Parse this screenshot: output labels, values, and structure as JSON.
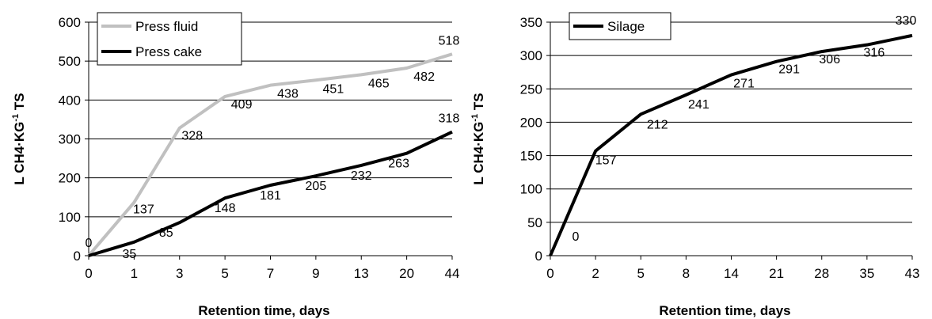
{
  "chart_data": [
    {
      "type": "line",
      "xlabel": "Retention time, days",
      "ylabel": "L CH4·KG⁻¹ TS",
      "ylabel_main": "L CH4·KG",
      "ylabel_sup": "-1",
      "ylabel_end": " TS",
      "categories": [
        "0",
        "1",
        "3",
        "5",
        "7",
        "9",
        "13",
        "20",
        "44"
      ],
      "ylim": [
        0,
        600
      ],
      "yticks": [
        0,
        100,
        200,
        300,
        400,
        500,
        600
      ],
      "grid": true,
      "legend_position": "top-left",
      "series": [
        {
          "name": "Press fluid",
          "color": "#c0c0c0",
          "values": [
            0,
            137,
            328,
            409,
            438,
            451,
            465,
            482,
            518
          ],
          "labels": [
            "0",
            "137",
            "328",
            "409",
            "438",
            "451",
            "465",
            "482",
            "518"
          ]
        },
        {
          "name": "Press cake",
          "color": "#000000",
          "values": [
            0,
            35,
            85,
            148,
            181,
            205,
            232,
            263,
            318
          ],
          "labels": [
            "",
            "35",
            "85",
            "148",
            "181",
            "205",
            "232",
            "263",
            "318"
          ]
        }
      ]
    },
    {
      "type": "line",
      "xlabel": "Retention time, days",
      "ylabel": "L CH4·KG⁻¹ TS",
      "ylabel_main": "L CH4·KG",
      "ylabel_sup": "-1",
      "ylabel_end": " TS",
      "categories": [
        "0",
        "2",
        "5",
        "8",
        "14",
        "21",
        "28",
        "35",
        "43"
      ],
      "ylim": [
        0,
        350
      ],
      "yticks": [
        0,
        50,
        100,
        150,
        200,
        250,
        300,
        350
      ],
      "grid": true,
      "legend_position": "top-left",
      "series": [
        {
          "name": "Silage",
          "color": "#000000",
          "values": [
            0,
            157,
            212,
            241,
            271,
            291,
            306,
            316,
            330
          ],
          "labels": [
            "0",
            "157",
            "212",
            "241",
            "271",
            "291",
            "306",
            "316",
            "330"
          ]
        }
      ]
    }
  ]
}
